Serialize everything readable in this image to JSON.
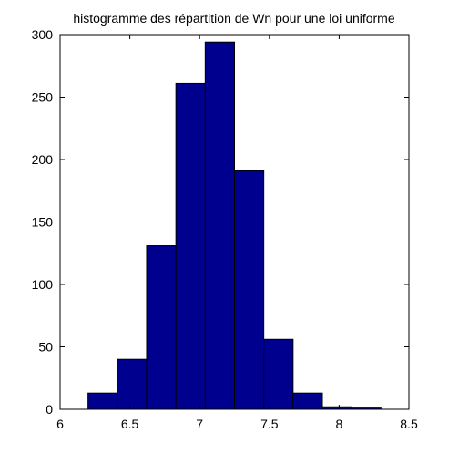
{
  "chart_data": {
    "type": "bar",
    "title": "histogramme des répartition de Wn pour une loi uniforme",
    "xlabel": "",
    "ylabel": "",
    "xlim": [
      6,
      8.5
    ],
    "ylim": [
      0,
      300
    ],
    "x_ticks": [
      "6",
      "6.5",
      "7",
      "7.5",
      "8",
      "8.5"
    ],
    "y_ticks": [
      "0",
      "50",
      "100",
      "150",
      "200",
      "250",
      "300"
    ],
    "bins": [
      {
        "start": 6.2,
        "end": 6.41,
        "value": 13
      },
      {
        "start": 6.41,
        "end": 6.62,
        "value": 40
      },
      {
        "start": 6.62,
        "end": 6.83,
        "value": 131
      },
      {
        "start": 6.83,
        "end": 7.04,
        "value": 261
      },
      {
        "start": 7.04,
        "end": 7.25,
        "value": 294
      },
      {
        "start": 7.25,
        "end": 7.46,
        "value": 191
      },
      {
        "start": 7.46,
        "end": 7.67,
        "value": 56
      },
      {
        "start": 7.67,
        "end": 7.88,
        "value": 13
      },
      {
        "start": 7.88,
        "end": 8.09,
        "value": 2
      },
      {
        "start": 8.09,
        "end": 8.3,
        "value": 1
      }
    ],
    "bar_color": "#00008f",
    "edge_color": "#000000",
    "grid": false,
    "legend": false
  }
}
